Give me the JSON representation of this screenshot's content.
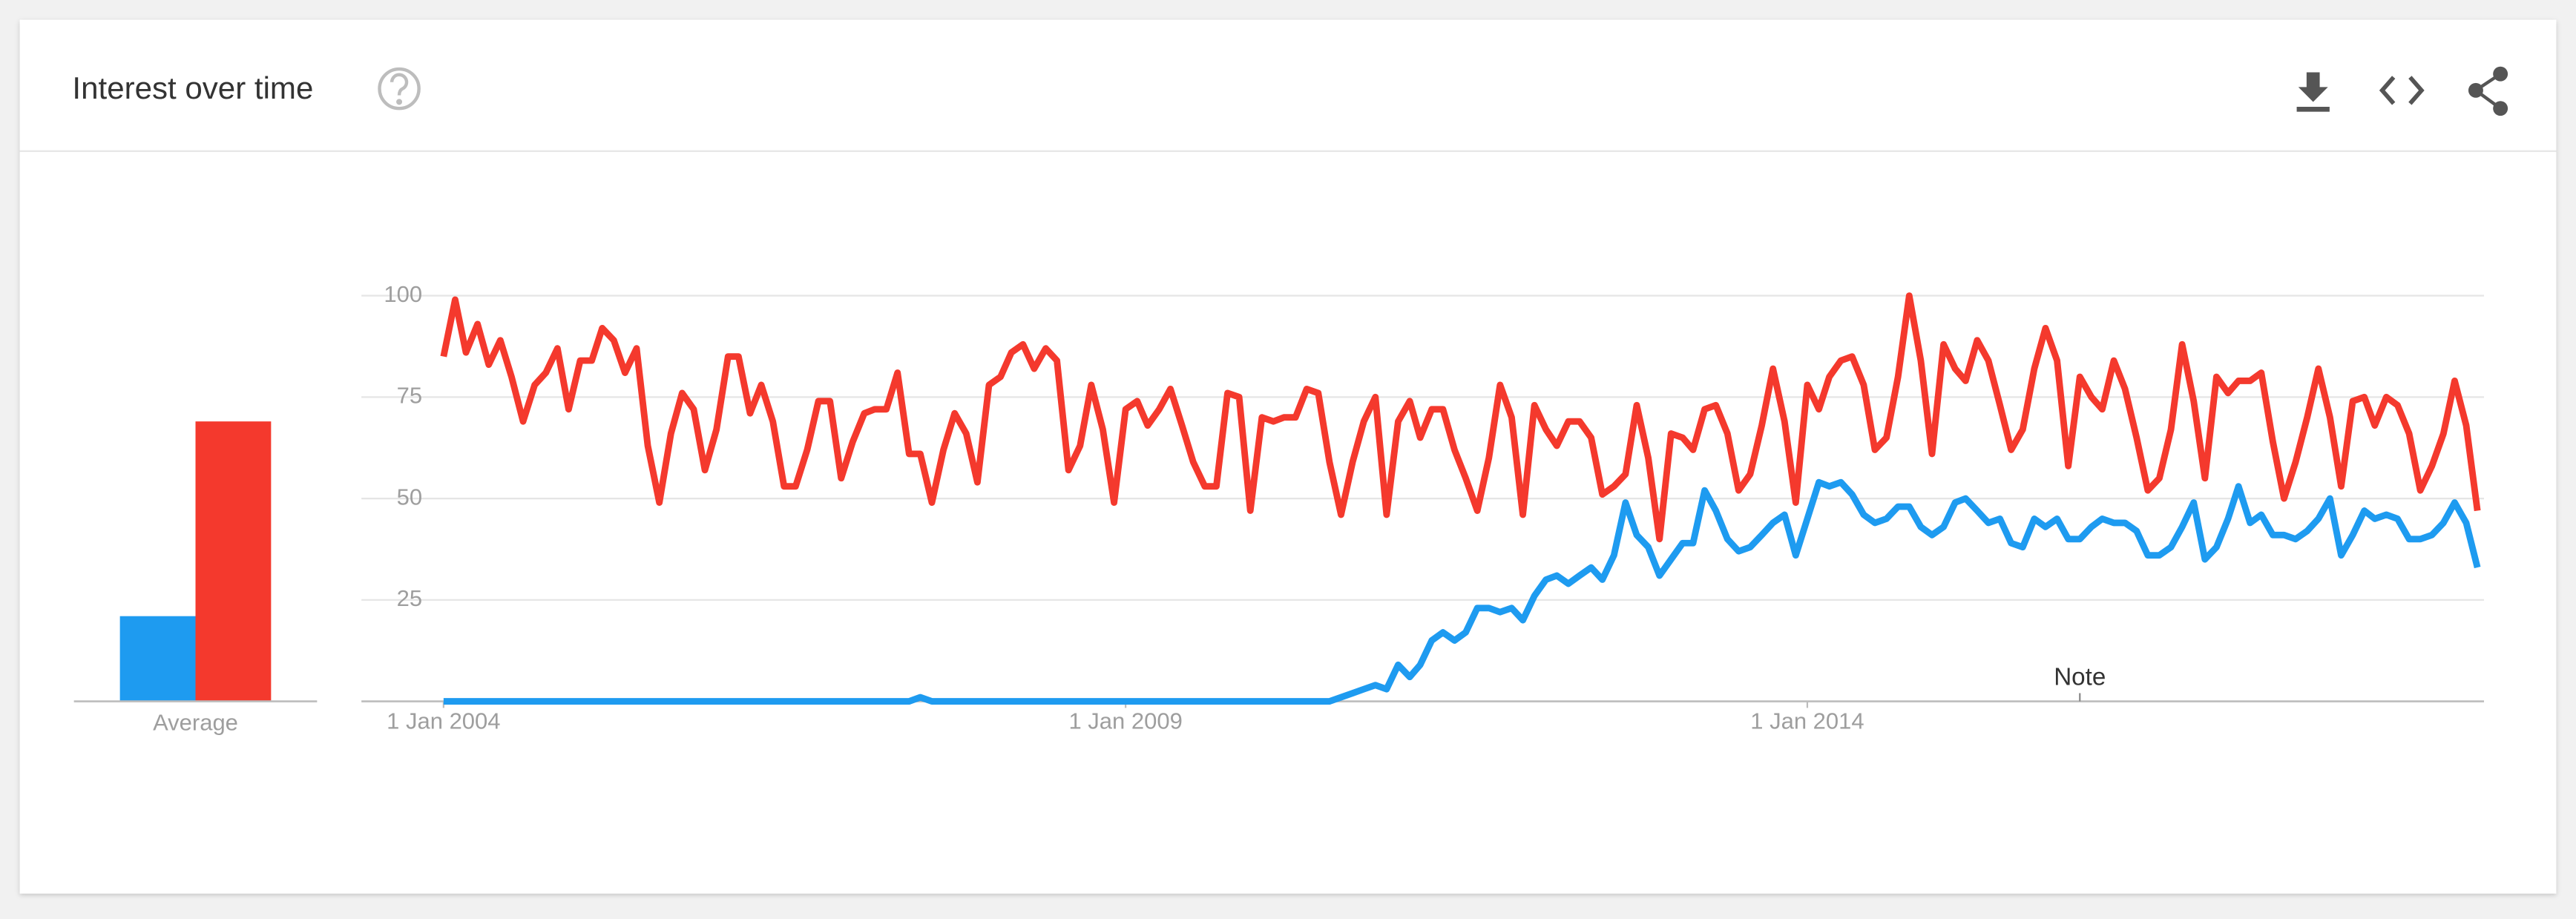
{
  "header": {
    "title": "Interest over time"
  },
  "chart_data": [
    {
      "type": "line",
      "x": [
        "2004-01-01",
        "2004-02-01",
        "2004-03-01",
        "2004-04-01",
        "2004-05-01",
        "2004-06-01",
        "2004-07-01",
        "2004-08-01",
        "2004-09-01",
        "2004-10-01",
        "2004-11-01",
        "2004-12-01",
        "2005-01-01",
        "2005-02-01",
        "2005-03-01",
        "2005-04-01",
        "2005-05-01",
        "2005-06-01",
        "2005-07-01",
        "2005-08-01",
        "2005-09-01",
        "2005-10-01",
        "2005-11-01",
        "2005-12-01",
        "2006-01-01",
        "2006-02-01",
        "2006-03-01",
        "2006-04-01",
        "2006-05-01",
        "2006-06-01",
        "2006-07-01",
        "2006-08-01",
        "2006-09-01",
        "2006-10-01",
        "2006-11-01",
        "2006-12-01",
        "2007-01-01",
        "2007-02-01",
        "2007-03-01",
        "2007-04-01",
        "2007-05-01",
        "2007-06-01",
        "2007-07-01",
        "2007-08-01",
        "2007-09-01",
        "2007-10-01",
        "2007-11-01",
        "2007-12-01",
        "2008-01-01",
        "2008-02-01",
        "2008-03-01",
        "2008-04-01",
        "2008-05-01",
        "2008-06-01",
        "2008-07-01",
        "2008-08-01",
        "2008-09-01",
        "2008-10-01",
        "2008-11-01",
        "2008-12-01",
        "2009-01-01",
        "2009-02-01",
        "2009-03-01",
        "2009-04-01",
        "2009-05-01",
        "2009-06-01",
        "2009-07-01",
        "2009-08-01",
        "2009-09-01",
        "2009-10-01",
        "2009-11-01",
        "2009-12-01",
        "2010-01-01",
        "2010-02-01",
        "2010-03-01",
        "2010-04-01",
        "2010-05-01",
        "2010-06-01",
        "2010-07-01",
        "2010-08-01",
        "2010-09-01",
        "2010-10-01",
        "2010-11-01",
        "2010-12-01",
        "2011-01-01",
        "2011-02-01",
        "2011-03-01",
        "2011-04-01",
        "2011-05-01",
        "2011-06-01",
        "2011-07-01",
        "2011-08-01",
        "2011-09-01",
        "2011-10-01",
        "2011-11-01",
        "2011-12-01",
        "2012-01-01",
        "2012-02-01",
        "2012-03-01",
        "2012-04-01",
        "2012-05-01",
        "2012-06-01",
        "2012-07-01",
        "2012-08-01",
        "2012-09-01",
        "2012-10-01",
        "2012-11-01",
        "2012-12-01",
        "2013-01-01",
        "2013-02-01",
        "2013-03-01",
        "2013-04-01",
        "2013-05-01",
        "2013-06-01",
        "2013-07-01",
        "2013-08-01",
        "2013-09-01",
        "2013-10-01",
        "2013-11-01",
        "2013-12-01",
        "2014-01-01",
        "2014-02-01",
        "2014-03-01",
        "2014-04-01",
        "2014-05-01",
        "2014-06-01",
        "2014-07-01",
        "2014-08-01",
        "2014-09-01",
        "2014-10-01",
        "2014-11-01",
        "2014-12-01",
        "2015-01-01",
        "2015-02-01",
        "2015-03-01",
        "2015-04-01",
        "2015-05-01",
        "2015-06-01",
        "2015-07-01",
        "2015-08-01",
        "2015-09-01",
        "2015-10-01",
        "2015-11-01",
        "2015-12-01",
        "2016-01-01",
        "2016-02-01",
        "2016-03-01",
        "2016-04-01",
        "2016-05-01",
        "2016-06-01",
        "2016-07-01",
        "2016-08-01",
        "2016-09-01",
        "2016-10-01",
        "2016-11-01",
        "2016-12-01",
        "2017-01-01",
        "2017-02-01",
        "2017-03-01",
        "2017-04-01",
        "2017-05-01",
        "2017-06-01",
        "2017-07-01",
        "2017-08-01",
        "2017-09-01",
        "2017-10-01",
        "2017-11-01",
        "2017-12-01",
        "2018-01-01",
        "2018-02-01",
        "2018-03-01",
        "2018-04-01",
        "2018-05-01",
        "2018-06-01",
        "2018-07-01",
        "2018-08-01",
        "2018-09-01",
        "2018-10-01",
        "2018-11-01",
        "2018-12-01"
      ],
      "series": [
        {
          "color": "#f4392d",
          "values": [
            85,
            99,
            86,
            93,
            83,
            89,
            80,
            69,
            78,
            81,
            87,
            72,
            84,
            84,
            92,
            89,
            81,
            87,
            63,
            49,
            66,
            76,
            72,
            57,
            67,
            85,
            85,
            71,
            78,
            69,
            53,
            53,
            62,
            74,
            74,
            55,
            64,
            71,
            72,
            72,
            81,
            61,
            61,
            49,
            62,
            71,
            66,
            54,
            78,
            80,
            86,
            88,
            82,
            87,
            84,
            57,
            63,
            78,
            67,
            49,
            72,
            74,
            68,
            72,
            77,
            68,
            59,
            53,
            53,
            76,
            75,
            47,
            70,
            69,
            70,
            70,
            77,
            76,
            59,
            46,
            59,
            69,
            75,
            46,
            69,
            74,
            65,
            72,
            72,
            62,
            55,
            47,
            60,
            78,
            70,
            46,
            73,
            67,
            63,
            69,
            69,
            65,
            51,
            53,
            56,
            73,
            60,
            40,
            66,
            65,
            62,
            72,
            73,
            66,
            52,
            56,
            68,
            82,
            69,
            49,
            78,
            72,
            80,
            84,
            85,
            78,
            62,
            65,
            80,
            100,
            84,
            61,
            88,
            82,
            79,
            89,
            84,
            73,
            62,
            67,
            82,
            92,
            84,
            58,
            80,
            75,
            72,
            84,
            77,
            65,
            52,
            55,
            67,
            88,
            74,
            55,
            80,
            76,
            79,
            79,
            81,
            64,
            50,
            59,
            70,
            82,
            70,
            53,
            74,
            75,
            68,
            75,
            73,
            66,
            52,
            58,
            66,
            79,
            68,
            47
          ]
        },
        {
          "color": "#1e9bf0",
          "values": [
            0,
            0,
            0,
            0,
            0,
            0,
            0,
            0,
            0,
            0,
            0,
            0,
            0,
            0,
            0,
            0,
            0,
            0,
            0,
            0,
            0,
            0,
            0,
            0,
            0,
            0,
            0,
            0,
            0,
            0,
            0,
            0,
            0,
            0,
            0,
            0,
            0,
            0,
            0,
            0,
            0,
            0,
            1,
            0,
            0,
            0,
            0,
            0,
            0,
            0,
            0,
            0,
            0,
            0,
            0,
            0,
            0,
            0,
            0,
            0,
            0,
            0,
            0,
            0,
            0,
            0,
            0,
            0,
            0,
            0,
            0,
            0,
            0,
            0,
            0,
            0,
            0,
            0,
            0,
            1,
            2,
            3,
            4,
            3,
            9,
            6,
            9,
            15,
            17,
            15,
            17,
            23,
            23,
            22,
            23,
            20,
            26,
            30,
            31,
            29,
            31,
            33,
            30,
            36,
            49,
            41,
            38,
            31,
            35,
            39,
            39,
            52,
            47,
            40,
            37,
            38,
            41,
            44,
            46,
            36,
            45,
            54,
            53,
            54,
            51,
            46,
            44,
            45,
            48,
            48,
            43,
            41,
            43,
            49,
            50,
            47,
            44,
            45,
            39,
            38,
            45,
            43,
            45,
            40,
            40,
            43,
            45,
            44,
            44,
            42,
            36,
            36,
            38,
            43,
            49,
            35,
            38,
            45,
            53,
            44,
            46,
            41,
            41,
            40,
            42,
            45,
            50,
            36,
            41,
            47,
            45,
            46,
            45,
            40,
            40,
            41,
            44,
            49,
            44,
            33
          ]
        }
      ],
      "xlim": [
        "2004-01-01",
        "2018-12-01"
      ],
      "xticks": [
        {
          "value": "2004-01-01",
          "label": "1 Jan 2004"
        },
        {
          "value": "2009-01-01",
          "label": "1 Jan 2009"
        },
        {
          "value": "2014-01-01",
          "label": "1 Jan 2014"
        }
      ],
      "ylim": [
        0,
        100
      ],
      "yticks": [
        25,
        50,
        75,
        100
      ],
      "grid": true,
      "annotations": [
        {
          "x": "2016-01-01",
          "label": "Note"
        }
      ]
    },
    {
      "type": "bar",
      "categories": [
        "Average"
      ],
      "series": [
        {
          "color": "#1e9bf0",
          "values": [
            21
          ]
        },
        {
          "color": "#f4392d",
          "values": [
            69
          ]
        }
      ],
      "ylim": [
        0,
        100
      ]
    }
  ]
}
